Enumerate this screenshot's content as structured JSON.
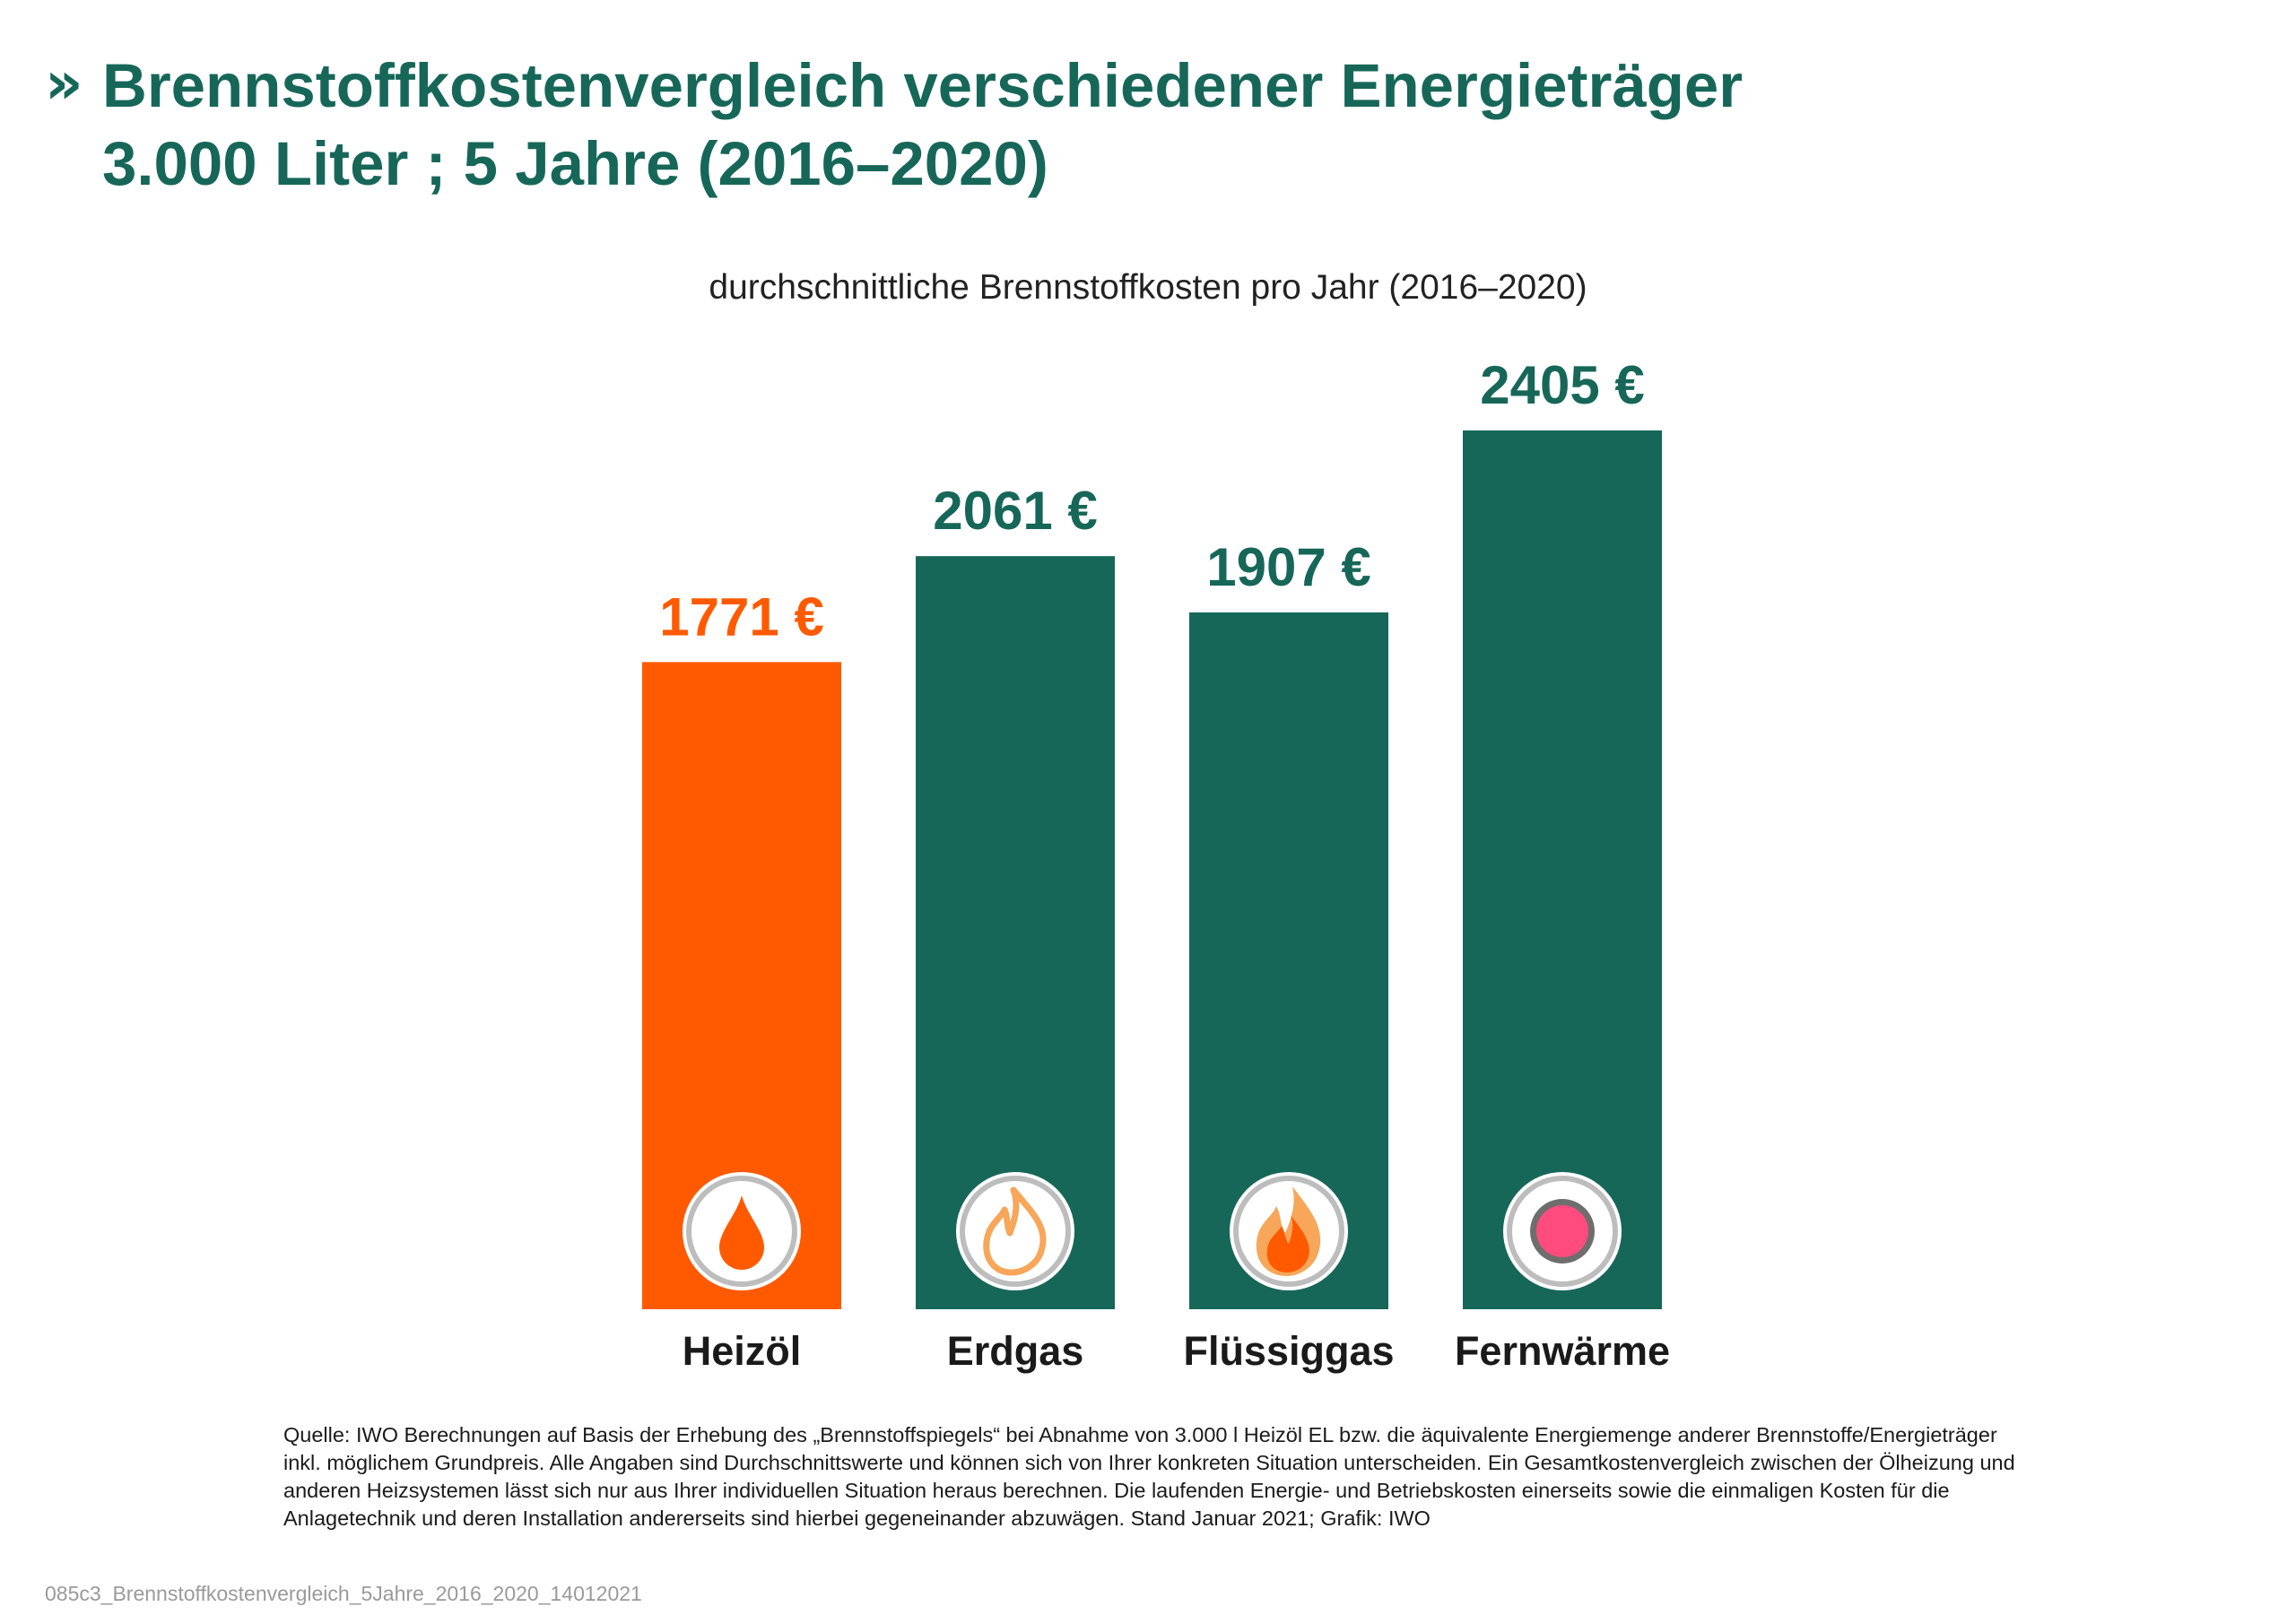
{
  "header": {
    "title_line1": "Brennstoffkostenvergleich verschiedener Energieträger",
    "title_line2": "3.000 Liter ; 5 Jahre (2016–2020)"
  },
  "colors": {
    "primary_green": "#176759",
    "accent_orange": "#FF5A00",
    "icon_flame_light": "#F7A65A",
    "icon_flame_dark": "#FF5A00",
    "icon_dot_pink": "#FF4B7E",
    "icon_ring_grey": "#BDBDBD"
  },
  "chart_data": {
    "type": "bar",
    "title": "durchschnittliche Brennstoffkosten pro Jahr (2016–2020)",
    "categories": [
      "Heizöl",
      "Erdgas",
      "Flüssiggas",
      "Fernwärme"
    ],
    "values": [
      1771,
      2061,
      1907,
      2405
    ],
    "value_labels": [
      "1771 €",
      "2061 €",
      "1907 €",
      "2405 €"
    ],
    "unit": "€",
    "bar_colors": [
      "#FF5A00",
      "#176759",
      "#176759",
      "#176759"
    ],
    "icons": [
      "oil-drop-icon",
      "gas-flame-icon",
      "lpg-flame-icon",
      "district-heat-dot-icon"
    ],
    "ylim": [
      0,
      2405
    ],
    "grid": false,
    "legend": "none"
  },
  "footer": {
    "source_lines": [
      "Quelle: IWO Berechnungen auf Basis der Erhebung des „Brennstoffspiegels“ bei Abnahme von 3.000 l Heizöl EL bzw. die äquivalente Energiemenge anderer Brennstoffe/Energieträger",
      "inkl. möglichem Grundpreis. Alle Angaben sind Durchschnittswerte und können sich von Ihrer konkreten Situation unterscheiden. Ein Gesamtkostenvergleich zwischen der Ölheizung und",
      "anderen Heizsystemen lässt sich nur aus Ihrer individuellen Situation heraus berechnen. Die laufenden Energie- und Betriebskosten einerseits sowie die einmaligen Kosten für die",
      "Anlagetechnik und deren Installation andererseits sind hierbei gegeneinander abzuwägen. Stand Januar 2021; Grafik: IWO"
    ],
    "filename": "085c3_Brennstoffkostenvergleich_5Jahre_2016_2020_14012021"
  }
}
